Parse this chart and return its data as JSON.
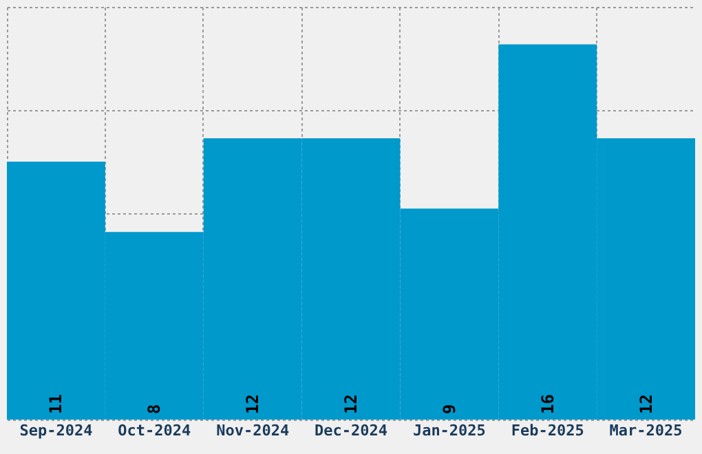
{
  "chart_data": {
    "type": "bar",
    "categories": [
      "Sep-2024",
      "Oct-2024",
      "Nov-2024",
      "Dec-2024",
      "Jan-2025",
      "Feb-2025",
      "Mar-2025"
    ],
    "values": [
      11,
      8,
      12,
      12,
      9,
      16,
      12
    ],
    "color": "#0099cc",
    "ylim": [
      0,
      17.6
    ],
    "grid": true,
    "data_labels": true,
    "tick_labels": "x"
  }
}
